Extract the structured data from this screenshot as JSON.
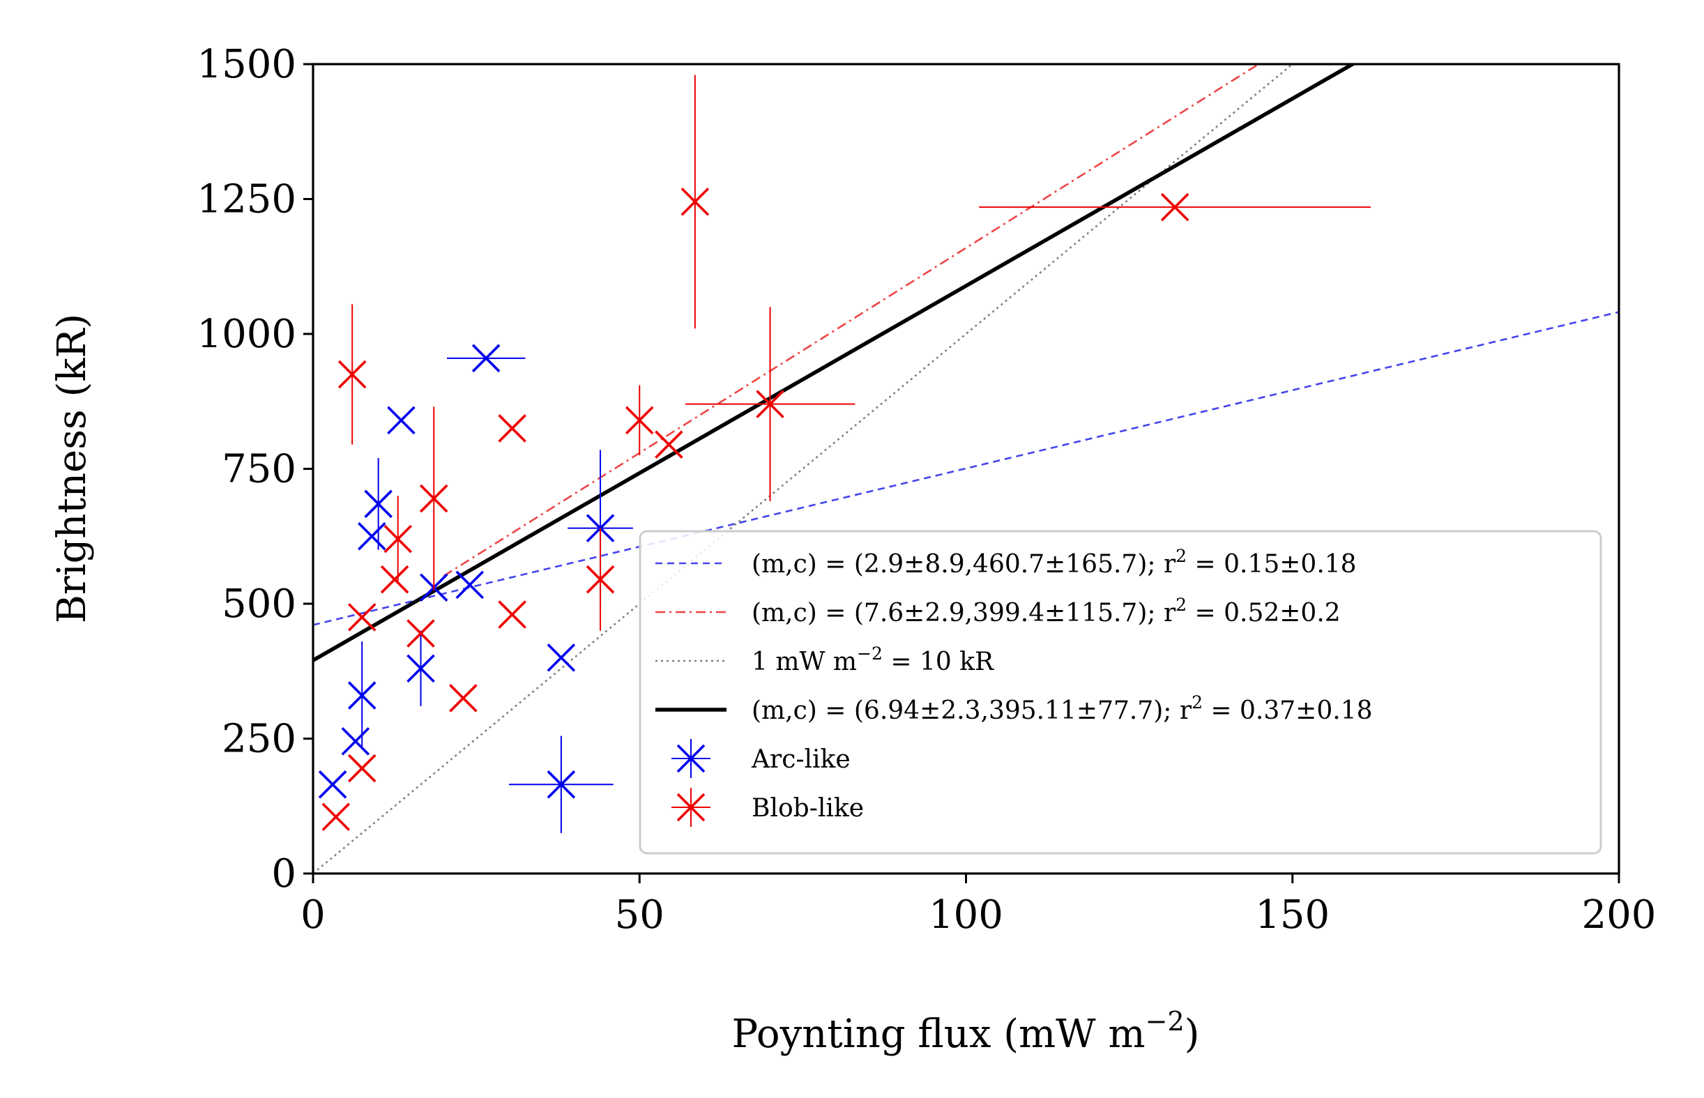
{
  "chart_data": {
    "type": "scatter",
    "title": "",
    "xlabel_main": "Poynting flux (mW m",
    "xlabel_sup": "−2",
    "xlabel_close": ")",
    "ylabel": "Brightness (kR)",
    "xlim": [
      0,
      200
    ],
    "ylim": [
      0,
      1500
    ],
    "xticks": [
      0,
      50,
      100,
      150,
      200
    ],
    "yticks": [
      0,
      250,
      500,
      750,
      1000,
      1250,
      1500
    ],
    "grid": false,
    "legend_position": "lower-right",
    "series": [
      {
        "name": "Arc-like",
        "color": "#0000ee",
        "points": [
          {
            "x": 3,
            "y": 165,
            "xerr": 0,
            "yerr": 0
          },
          {
            "x": 6.5,
            "y": 245,
            "xerr": 0,
            "yerr": 0
          },
          {
            "x": 7.5,
            "y": 330,
            "xerr": 0,
            "yerr": 100
          },
          {
            "x": 9,
            "y": 625,
            "xerr": 0,
            "yerr": 0
          },
          {
            "x": 10,
            "y": 685,
            "xerr": 0,
            "yerr": 85
          },
          {
            "x": 13.5,
            "y": 840,
            "xerr": 0,
            "yerr": 0
          },
          {
            "x": 16.5,
            "y": 380,
            "xerr": 0,
            "yerr": 70
          },
          {
            "x": 18.5,
            "y": 530,
            "xerr": 0,
            "yerr": 0
          },
          {
            "x": 24,
            "y": 535,
            "xerr": 0,
            "yerr": 0
          },
          {
            "x": 26.5,
            "y": 955,
            "xerr": 6,
            "yerr": 0
          },
          {
            "x": 38,
            "y": 400,
            "xerr": 0,
            "yerr": 0
          },
          {
            "x": 38,
            "y": 165,
            "xerr": 8,
            "yerr": 90
          },
          {
            "x": 44,
            "y": 640,
            "xerr": 5,
            "yerr": 145
          }
        ]
      },
      {
        "name": "Blob-like",
        "color": "#ee0000",
        "points": [
          {
            "x": 3.5,
            "y": 105,
            "xerr": 0,
            "yerr": 0
          },
          {
            "x": 6,
            "y": 925,
            "xerr": 0,
            "yerr": 130
          },
          {
            "x": 7.5,
            "y": 195,
            "xerr": 0,
            "yerr": 0
          },
          {
            "x": 7.5,
            "y": 475,
            "xerr": 0,
            "yerr": 0
          },
          {
            "x": 12.5,
            "y": 545,
            "xerr": 0,
            "yerr": 0
          },
          {
            "x": 13,
            "y": 620,
            "xerr": 0,
            "yerr": 80
          },
          {
            "x": 16.5,
            "y": 445,
            "xerr": 0,
            "yerr": 0
          },
          {
            "x": 18.5,
            "y": 695,
            "xerr": 0,
            "yerr": 170
          },
          {
            "x": 23,
            "y": 325,
            "xerr": 0,
            "yerr": 0
          },
          {
            "x": 30.5,
            "y": 825,
            "xerr": 0,
            "yerr": 0
          },
          {
            "x": 30.5,
            "y": 480,
            "xerr": 0,
            "yerr": 0
          },
          {
            "x": 44,
            "y": 545,
            "xerr": 0,
            "yerr": 95
          },
          {
            "x": 50,
            "y": 840,
            "xerr": 0,
            "yerr": 65
          },
          {
            "x": 54.5,
            "y": 795,
            "xerr": 0,
            "yerr": 0
          },
          {
            "x": 58.5,
            "y": 1245,
            "xerr": 0,
            "yerr": 235
          },
          {
            "x": 70,
            "y": 870,
            "xerr": 13,
            "yerr": 180
          },
          {
            "x": 132,
            "y": 1235,
            "xerr": 30,
            "yerr": 0
          }
        ]
      }
    ],
    "fit_lines": [
      {
        "label": "(m,c) = (2.9±8.9,460.7±165.7); r",
        "sup": "2",
        "tail": " = 0.15±0.18",
        "slope": 2.9,
        "intercept": 460.7,
        "color": "#4444ee",
        "dash": "10,7",
        "width": 2.6,
        "x0": 0,
        "x1": 200
      },
      {
        "label": "(m,c) = (7.6±2.9,399.4±115.7); r",
        "sup": "2",
        "tail": " = 0.52±0.2",
        "slope": 7.6,
        "intercept": 399.4,
        "color": "#ee4444",
        "dash": "14,6,3,6",
        "width": 2.6,
        "x0": 20,
        "x1": 200
      },
      {
        "label": "1 mW m",
        "sup": "−2",
        "tail": " = 10 kR",
        "slope": 10,
        "intercept": 0,
        "color": "#808080",
        "dash": "3,5",
        "width": 2.6,
        "x0": 0,
        "x1": 200
      },
      {
        "label": "(m,c) = (6.94±2.3,395.11±77.7); r",
        "sup": "2",
        "tail": " = 0.37±0.18",
        "slope": 6.94,
        "intercept": 395.11,
        "color": "#000000",
        "dash": "",
        "width": 5.5,
        "x0": 0,
        "x1": 200
      }
    ]
  }
}
